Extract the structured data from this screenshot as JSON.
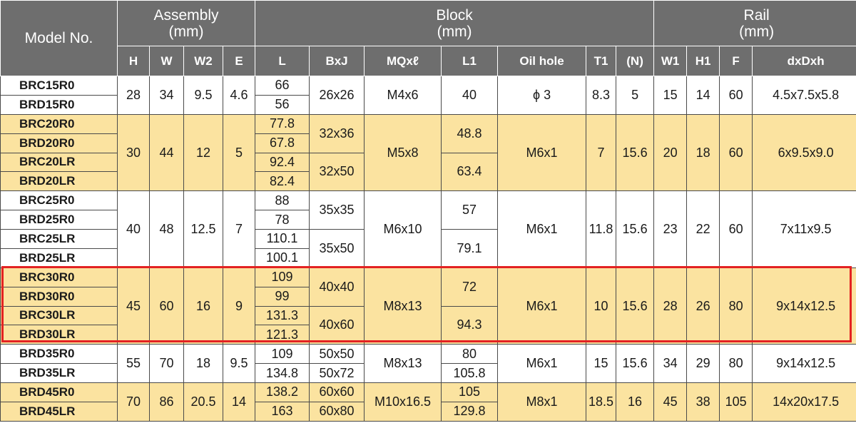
{
  "header": {
    "model_label": "Model No.",
    "groups": [
      {
        "title": "Assembly",
        "unit": "(mm)"
      },
      {
        "title": "Block",
        "unit": "(mm)"
      },
      {
        "title": "Rail",
        "unit": "(mm)"
      }
    ],
    "columns": [
      "H",
      "W",
      "W2",
      "E",
      "L",
      "BxJ",
      "MQxℓ",
      "L1",
      "Oil hole",
      "T1",
      "(N)",
      "W1",
      "H1",
      "F",
      "dxDxh"
    ]
  },
  "groups": [
    {
      "models": [
        "BRC15R0",
        "BRD15R0"
      ],
      "H": "28",
      "W": "34",
      "W2": "9.5",
      "E": "4.6",
      "L": [
        "66",
        "56"
      ],
      "BxJ": [
        "26x26"
      ],
      "MQ": "M4x6",
      "L1": [
        "40"
      ],
      "oil": "ϕ 3",
      "T1": "8.3",
      "N": "5",
      "W1": "15",
      "H1": "14",
      "F": "60",
      "dDh": "4.5x7.5x5.8"
    },
    {
      "models": [
        "BRC20R0",
        "BRD20R0",
        "BRC20LR",
        "BRD20LR"
      ],
      "H": "30",
      "W": "44",
      "W2": "12",
      "E": "5",
      "L": [
        "77.8",
        "67.8",
        "92.4",
        "82.4"
      ],
      "BxJ": [
        "32x36",
        "32x50"
      ],
      "MQ": "M5x8",
      "L1": [
        "48.8",
        "63.4"
      ],
      "oil": "M6x1",
      "T1": "7",
      "N": "15.6",
      "W1": "20",
      "H1": "18",
      "F": "60",
      "dDh": "6x9.5x9.0"
    },
    {
      "models": [
        "BRC25R0",
        "BRD25R0",
        "BRC25LR",
        "BRD25LR"
      ],
      "H": "40",
      "W": "48",
      "W2": "12.5",
      "E": "7",
      "L": [
        "88",
        "78",
        "110.1",
        "100.1"
      ],
      "BxJ": [
        "35x35",
        "35x50"
      ],
      "MQ": "M6x10",
      "L1": [
        "57",
        "79.1"
      ],
      "oil": "M6x1",
      "T1": "11.8",
      "N": "15.6",
      "W1": "23",
      "H1": "22",
      "F": "60",
      "dDh": "7x11x9.5"
    },
    {
      "models": [
        "BRC30R0",
        "BRD30R0",
        "BRC30LR",
        "BRD30LR"
      ],
      "H": "45",
      "W": "60",
      "W2": "16",
      "E": "9",
      "L": [
        "109",
        "99",
        "131.3",
        "121.3"
      ],
      "BxJ": [
        "40x40",
        "40x60"
      ],
      "MQ": "M8x13",
      "L1": [
        "72",
        "94.3"
      ],
      "oil": "M6x1",
      "T1": "10",
      "N": "15.6",
      "W1": "28",
      "H1": "26",
      "F": "80",
      "dDh": "9x14x12.5"
    },
    {
      "models": [
        "BRD35R0",
        "BRD35LR"
      ],
      "H": "55",
      "W": "70",
      "W2": "18",
      "E": "9.5",
      "L": [
        "109",
        "134.8"
      ],
      "BxJ": [
        "50x50",
        "50x72"
      ],
      "MQ": "M8x13",
      "L1": [
        "80",
        "105.8"
      ],
      "oil": "M6x1",
      "T1": "15",
      "N": "15.6",
      "W1": "34",
      "H1": "29",
      "F": "80",
      "dDh": "9x14x12.5"
    },
    {
      "models": [
        "BRD45R0",
        "BRD45LR"
      ],
      "H": "70",
      "W": "86",
      "W2": "20.5",
      "E": "14",
      "L": [
        "138.2",
        "163"
      ],
      "BxJ": [
        "60x60",
        "60x80"
      ],
      "MQ": "M10x16.5",
      "L1": [
        "105",
        "129.8"
      ],
      "oil": "M8x1",
      "T1": "18.5",
      "N": "16",
      "W1": "45",
      "H1": "38",
      "F": "105",
      "dDh": "14x20x17.5"
    }
  ],
  "style": {
    "header_bg": "#6e6e6e",
    "row_yellow": "#fbe3a0",
    "row_white": "#ffffff",
    "highlight_border": "#e32222"
  }
}
